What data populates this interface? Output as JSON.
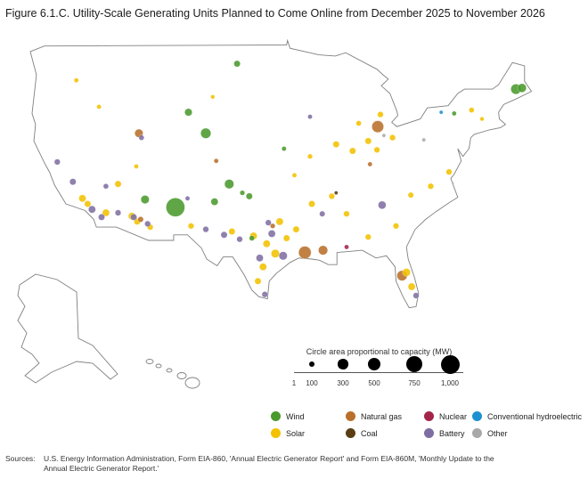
{
  "title": "Figure 6.1.C. Utility-Scale Generating Units Planned to Come Online from December 2025 to November 2026",
  "size_legend": {
    "title": "Circle area proportional to capacity (MW)",
    "ticks": [
      {
        "label": "1",
        "mw": 1
      },
      {
        "label": "100",
        "mw": 100
      },
      {
        "label": "300",
        "mw": 300
      },
      {
        "label": "500",
        "mw": 500
      },
      {
        "label": "750",
        "mw": 750
      },
      {
        "label": "1,000",
        "mw": 1000
      }
    ]
  },
  "type_legend": [
    {
      "label": "Wind",
      "color": "#4a9a2e"
    },
    {
      "label": "Natural gas",
      "color": "#b8702a"
    },
    {
      "label": "Nuclear",
      "color": "#a3244a"
    },
    {
      "label": "Conventional hydroelectric",
      "color": "#1e90d0"
    },
    {
      "label": "Solar",
      "color": "#f2c200"
    },
    {
      "label": "Coal",
      "color": "#5a3d12"
    },
    {
      "label": "Battery",
      "color": "#7f6ea3"
    },
    {
      "label": "Other",
      "color": "#a8a8a8"
    }
  ],
  "sources": {
    "label": "Sources:",
    "text": "U.S. Energy Information Administration, Form EIA-860, 'Annual Electric Generator Report' and Form EIA-860M, 'Monthly Update to the Annual Electric Generator Report.'"
  },
  "chart_data": {
    "type": "scatter",
    "title": "Figure 6.1.C. Utility-Scale Generating Units Planned to Come Online from December 2025 to November 2026",
    "size_encoding": "circle area proportional to capacity (MW)",
    "series": [
      {
        "name": "Wind",
        "points": [
          {
            "lon": -100.9,
            "lat": 47.3,
            "mw": 120
          },
          {
            "lon": -106.5,
            "lat": 42.9,
            "mw": 160
          },
          {
            "lon": -104.5,
            "lat": 41.0,
            "mw": 300
          },
          {
            "lon": -111.5,
            "lat": 35.0,
            "mw": 200
          },
          {
            "lon": -108.0,
            "lat": 34.3,
            "mw": 1000
          },
          {
            "lon": -101.8,
            "lat": 36.4,
            "mw": 250
          },
          {
            "lon": -103.5,
            "lat": 34.8,
            "mw": 150
          },
          {
            "lon": -99.5,
            "lat": 35.3,
            "mw": 120
          },
          {
            "lon": -95.5,
            "lat": 39.6,
            "mw": 60
          },
          {
            "lon": -75.9,
            "lat": 42.8,
            "mw": 60
          },
          {
            "lon": -68.8,
            "lat": 45.0,
            "mw": 300
          },
          {
            "lon": -68.1,
            "lat": 45.1,
            "mw": 220
          },
          {
            "lon": -99.2,
            "lat": 31.5,
            "mw": 80
          },
          {
            "lon": -100.3,
            "lat": 35.6,
            "mw": 70
          }
        ]
      },
      {
        "name": "Natural gas",
        "points": [
          {
            "lon": -112.2,
            "lat": 41.0,
            "mw": 200
          },
          {
            "lon": -84.7,
            "lat": 41.6,
            "mw": 400
          },
          {
            "lon": -93.1,
            "lat": 30.2,
            "mw": 450
          },
          {
            "lon": -91.0,
            "lat": 30.4,
            "mw": 250
          },
          {
            "lon": -81.9,
            "lat": 28.1,
            "mw": 300
          },
          {
            "lon": -112.0,
            "lat": 33.2,
            "mw": 90
          },
          {
            "lon": -96.8,
            "lat": 32.6,
            "mw": 70
          },
          {
            "lon": -103.3,
            "lat": 38.5,
            "mw": 60
          },
          {
            "lon": -85.6,
            "lat": 38.2,
            "mw": 60
          }
        ]
      },
      {
        "name": "Solar",
        "points": [
          {
            "lon": -118.7,
            "lat": 35.1,
            "mw": 150
          },
          {
            "lon": -118.1,
            "lat": 34.6,
            "mw": 120
          },
          {
            "lon": -116.0,
            "lat": 33.8,
            "mw": 150
          },
          {
            "lon": -114.6,
            "lat": 36.4,
            "mw": 120
          },
          {
            "lon": -113.0,
            "lat": 33.5,
            "mw": 150
          },
          {
            "lon": -112.4,
            "lat": 33.0,
            "mw": 120
          },
          {
            "lon": -110.9,
            "lat": 32.5,
            "mw": 100
          },
          {
            "lon": -106.2,
            "lat": 32.6,
            "mw": 100
          },
          {
            "lon": -101.5,
            "lat": 32.1,
            "mw": 120
          },
          {
            "lon": -99.0,
            "lat": 31.7,
            "mw": 150
          },
          {
            "lon": -97.5,
            "lat": 31.0,
            "mw": 150
          },
          {
            "lon": -96.5,
            "lat": 30.1,
            "mw": 200
          },
          {
            "lon": -97.9,
            "lat": 28.9,
            "mw": 150
          },
          {
            "lon": -98.5,
            "lat": 27.6,
            "mw": 120
          },
          {
            "lon": -96.0,
            "lat": 33.0,
            "mw": 150
          },
          {
            "lon": -95.2,
            "lat": 31.5,
            "mw": 120
          },
          {
            "lon": -94.1,
            "lat": 32.3,
            "mw": 120
          },
          {
            "lon": -92.3,
            "lat": 34.6,
            "mw": 120
          },
          {
            "lon": -90.0,
            "lat": 35.3,
            "mw": 100
          },
          {
            "lon": -88.3,
            "lat": 33.7,
            "mw": 100
          },
          {
            "lon": -85.8,
            "lat": 31.6,
            "mw": 100
          },
          {
            "lon": -82.6,
            "lat": 32.6,
            "mw": 100
          },
          {
            "lon": -81.4,
            "lat": 28.4,
            "mw": 180
          },
          {
            "lon": -80.8,
            "lat": 27.1,
            "mw": 150
          },
          {
            "lon": -80.9,
            "lat": 35.4,
            "mw": 90
          },
          {
            "lon": -78.6,
            "lat": 36.2,
            "mw": 100
          },
          {
            "lon": -76.5,
            "lat": 37.5,
            "mw": 100
          },
          {
            "lon": -85.8,
            "lat": 40.3,
            "mw": 120
          },
          {
            "lon": -87.6,
            "lat": 39.4,
            "mw": 120
          },
          {
            "lon": -89.5,
            "lat": 40.0,
            "mw": 120
          },
          {
            "lon": -84.8,
            "lat": 39.5,
            "mw": 100
          },
          {
            "lon": -83.0,
            "lat": 40.6,
            "mw": 100
          },
          {
            "lon": -84.4,
            "lat": 42.7,
            "mw": 100
          },
          {
            "lon": -86.9,
            "lat": 41.9,
            "mw": 80
          },
          {
            "lon": -92.5,
            "lat": 38.9,
            "mw": 70
          },
          {
            "lon": -94.3,
            "lat": 37.2,
            "mw": 60
          },
          {
            "lon": -103.7,
            "lat": 44.3,
            "mw": 50
          },
          {
            "lon": -116.8,
            "lat": 43.4,
            "mw": 60
          },
          {
            "lon": -119.4,
            "lat": 45.8,
            "mw": 60
          },
          {
            "lon": -73.9,
            "lat": 43.1,
            "mw": 80
          },
          {
            "lon": -72.7,
            "lat": 42.3,
            "mw": 50
          },
          {
            "lon": -112.5,
            "lat": 38.0,
            "mw": 60
          }
        ]
      },
      {
        "name": "Battery",
        "points": [
          {
            "lon": -121.6,
            "lat": 38.4,
            "mw": 100
          },
          {
            "lon": -119.8,
            "lat": 36.6,
            "mw": 120
          },
          {
            "lon": -117.6,
            "lat": 34.1,
            "mw": 150
          },
          {
            "lon": -116.5,
            "lat": 33.4,
            "mw": 120
          },
          {
            "lon": -114.6,
            "lat": 33.8,
            "mw": 100
          },
          {
            "lon": -112.8,
            "lat": 33.4,
            "mw": 120
          },
          {
            "lon": -111.2,
            "lat": 32.8,
            "mw": 100
          },
          {
            "lon": -104.5,
            "lat": 32.3,
            "mw": 100
          },
          {
            "lon": -102.4,
            "lat": 31.8,
            "mw": 120
          },
          {
            "lon": -100.6,
            "lat": 31.4,
            "mw": 100
          },
          {
            "lon": -98.3,
            "lat": 29.7,
            "mw": 150
          },
          {
            "lon": -96.9,
            "lat": 31.9,
            "mw": 150
          },
          {
            "lon": -95.6,
            "lat": 29.9,
            "mw": 200
          },
          {
            "lon": -97.7,
            "lat": 26.4,
            "mw": 100
          },
          {
            "lon": -97.3,
            "lat": 32.9,
            "mw": 100
          },
          {
            "lon": -91.1,
            "lat": 33.7,
            "mw": 90
          },
          {
            "lon": -84.2,
            "lat": 34.5,
            "mw": 180
          },
          {
            "lon": -80.3,
            "lat": 26.3,
            "mw": 100
          },
          {
            "lon": -111.9,
            "lat": 40.6,
            "mw": 80
          },
          {
            "lon": -116.0,
            "lat": 36.2,
            "mw": 80
          },
          {
            "lon": -106.6,
            "lat": 35.1,
            "mw": 60
          },
          {
            "lon": -92.5,
            "lat": 42.5,
            "mw": 60
          }
        ]
      },
      {
        "name": "Nuclear",
        "points": [
          {
            "lon": -88.3,
            "lat": 30.7,
            "mw": 60
          }
        ]
      },
      {
        "name": "Conventional hydroelectric",
        "points": [
          {
            "lon": -77.4,
            "lat": 42.9,
            "mw": 40
          }
        ]
      },
      {
        "name": "Coal",
        "points": [
          {
            "lon": -89.5,
            "lat": 35.6,
            "mw": 40
          }
        ]
      },
      {
        "name": "Other",
        "points": [
          {
            "lon": -79.4,
            "lat": 40.4,
            "mw": 40
          },
          {
            "lon": -84.0,
            "lat": 40.8,
            "mw": 40
          }
        ]
      }
    ]
  }
}
